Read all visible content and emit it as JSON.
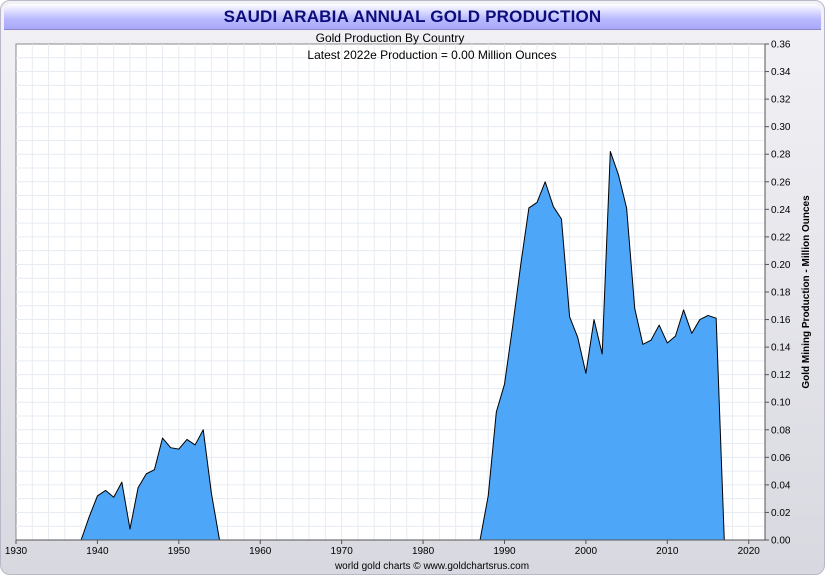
{
  "chart_data": {
    "type": "area",
    "title": "SAUDI ARABIA ANNUAL GOLD PRODUCTION",
    "subtitle": "Gold Production By Country",
    "annotation": "Latest 2022e Production = 0.00 Million Ounces",
    "ylabel": "Gold Mining Production - Million Ounces",
    "footer": "world gold charts © www.goldchartsrus.com",
    "xlim": [
      1930,
      2022
    ],
    "ylim": [
      0,
      0.36
    ],
    "x_ticks": [
      "1930",
      "1940",
      "1950",
      "1960",
      "1970",
      "1980",
      "1990",
      "2000",
      "2010",
      "2020"
    ],
    "y_ticks": [
      "0.00",
      "0.02",
      "0.04",
      "0.06",
      "0.08",
      "0.10",
      "0.12",
      "0.14",
      "0.16",
      "0.18",
      "0.20",
      "0.22",
      "0.24",
      "0.26",
      "0.28",
      "0.30",
      "0.32",
      "0.34",
      "0.36"
    ],
    "y_axis_side": "right",
    "grid": true,
    "fill_color": "#4da6f7",
    "line_color": "#000000",
    "series": [
      {
        "x": [
          1938,
          1939,
          1940,
          1941,
          1942,
          1943,
          1944,
          1945,
          1946,
          1947,
          1948,
          1949,
          1950,
          1951,
          1952,
          1953,
          1954,
          1955,
          1987,
          1988,
          1989,
          1990,
          1991,
          1992,
          1993,
          1994,
          1995,
          1996,
          1997,
          1998,
          1999,
          2000,
          2001,
          2002,
          2003,
          2004,
          2005,
          2006,
          2007,
          2008,
          2009,
          2010,
          2011,
          2012,
          2013,
          2014,
          2015,
          2016,
          2017
        ],
        "y": [
          0.0,
          0.017,
          0.032,
          0.036,
          0.031,
          0.042,
          0.008,
          0.038,
          0.048,
          0.051,
          0.074,
          0.067,
          0.066,
          0.073,
          0.069,
          0.08,
          0.034,
          0.0,
          0.0,
          0.032,
          0.093,
          0.113,
          0.155,
          0.2,
          0.241,
          0.245,
          0.26,
          0.242,
          0.233,
          0.162,
          0.147,
          0.121,
          0.16,
          0.135,
          0.282,
          0.265,
          0.241,
          0.168,
          0.142,
          0.145,
          0.156,
          0.143,
          0.148,
          0.167,
          0.15,
          0.16,
          0.163,
          0.161,
          0.0
        ]
      }
    ]
  }
}
